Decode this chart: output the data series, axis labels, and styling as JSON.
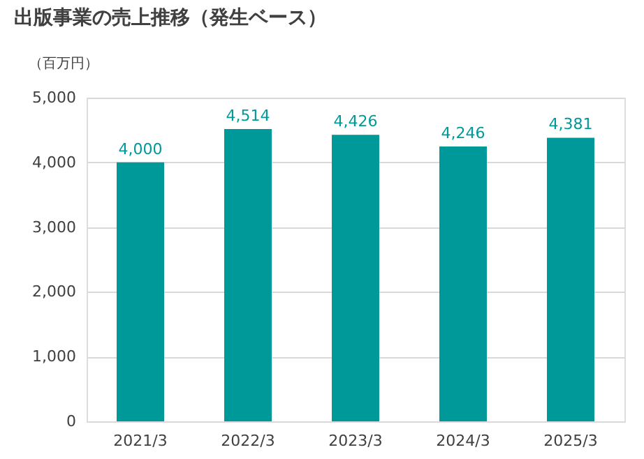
{
  "chart_data": {
    "type": "bar",
    "title": "出版事業の売上推移（発生ベース）",
    "ylabel": "（百万円）",
    "categories": [
      "2021/3",
      "2022/3",
      "2023/3",
      "2024/3",
      "2025/3"
    ],
    "values": [
      4000,
      4514,
      4426,
      4246,
      4381
    ],
    "color": "#009999",
    "value_labels": [
      "4,000",
      "4,514",
      "4,426",
      "4,246",
      "4,381"
    ],
    "ylim": [
      0,
      5000
    ],
    "yticks": [
      0,
      {
        "value": 1000,
        "label": "1,000"
      },
      {
        "value": 2000,
        "label": "2,000"
      },
      {
        "value": 3000,
        "label": "3,000"
      },
      {
        "value": 4000,
        "label": "4,000"
      },
      {
        "value": 5000,
        "label": "5,000"
      }
    ],
    "grid": "y"
  }
}
